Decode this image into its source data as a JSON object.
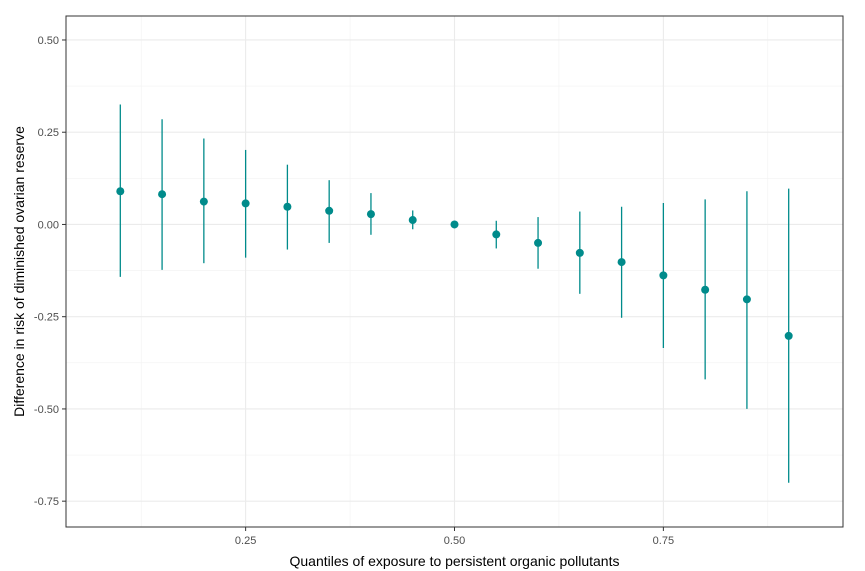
{
  "chart_data": {
    "type": "scatter",
    "subtype": "pointrange",
    "title": "",
    "xlabel": "Quantiles of exposure to persistent organic pollutants",
    "ylabel": "Difference in risk of diminished ovarian reserve",
    "xlim": [
      0.035,
      0.965
    ],
    "ylim": [
      -0.82,
      0.565
    ],
    "x_ticks": [
      0.25,
      0.5,
      0.75
    ],
    "x_tick_labels": [
      "0.25",
      "0.50",
      "0.75"
    ],
    "y_ticks": [
      -0.75,
      -0.5,
      -0.25,
      0.0,
      0.25,
      0.5
    ],
    "y_tick_labels": [
      "-0.75",
      "-0.50",
      "-0.25",
      "0.00",
      "0.25",
      "0.50"
    ],
    "grid": true,
    "legend": "none",
    "color": "#008b8b",
    "series": [
      {
        "x": [
          0.1,
          0.15,
          0.2,
          0.25,
          0.3,
          0.35,
          0.4,
          0.45,
          0.5,
          0.55,
          0.6,
          0.65,
          0.7,
          0.75,
          0.8,
          0.85,
          0.9
        ],
        "y": [
          0.09,
          0.082,
          0.062,
          0.057,
          0.048,
          0.037,
          0.028,
          0.012,
          0.0,
          -0.027,
          -0.05,
          -0.077,
          -0.102,
          -0.138,
          -0.177,
          -0.203,
          -0.302
        ],
        "lower": [
          -0.142,
          -0.123,
          -0.105,
          -0.09,
          -0.068,
          -0.05,
          -0.028,
          -0.013,
          0.0,
          -0.065,
          -0.12,
          -0.188,
          -0.253,
          -0.335,
          -0.42,
          -0.5,
          -0.7
        ],
        "upper": [
          0.325,
          0.285,
          0.233,
          0.202,
          0.162,
          0.12,
          0.085,
          0.038,
          0.0,
          0.01,
          0.02,
          0.035,
          0.048,
          0.058,
          0.068,
          0.09,
          0.097
        ]
      }
    ]
  }
}
